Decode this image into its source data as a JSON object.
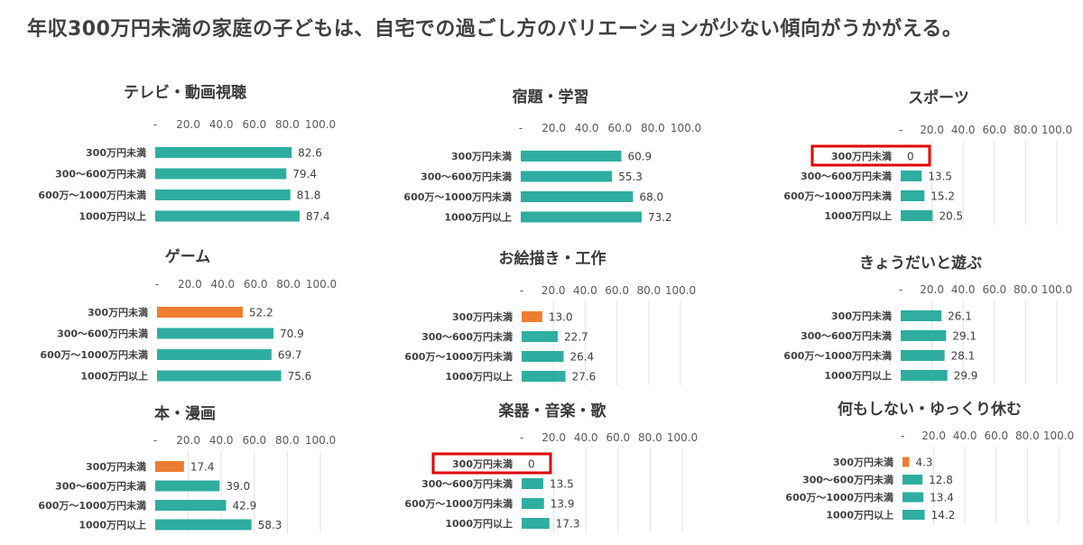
{
  "page": {
    "title": "年収300万円未満の家庭の子どもは、自宅での過ごし方のバリエーションが少ない傾向がうかがえる。"
  },
  "colors": {
    "default_bar": "#2fada0",
    "highlight_bar": "#ed7d31",
    "emphasis_box": "#e00000"
  },
  "chart_data": [
    {
      "type": "bar",
      "orientation": "horizontal",
      "title": "テレビ・動画視聴",
      "categories": [
        "300万円未満",
        "300～600万円未満",
        "600万～1000万円未満",
        "1000万円以上"
      ],
      "values": [
        82.6,
        79.4,
        81.8,
        87.4
      ],
      "value_labels": [
        "82.6",
        "79.4",
        "81.8",
        "87.4"
      ],
      "xlim": [
        0,
        100
      ],
      "ticks": [
        "-",
        "20.0",
        "40.0",
        "60.0",
        "80.0",
        "100.0"
      ],
      "highlight_index": null,
      "boxed_index": null,
      "grid": false
    },
    {
      "type": "bar",
      "orientation": "horizontal",
      "title": "宿題・学習",
      "categories": [
        "300万円未満",
        "300～600万円未満",
        "600万～1000万円未満",
        "1000万円以上"
      ],
      "values": [
        60.9,
        55.3,
        68.0,
        73.2
      ],
      "value_labels": [
        "60.9",
        "55.3",
        "68.0",
        "73.2"
      ],
      "xlim": [
        0,
        100
      ],
      "ticks": [
        "-",
        "20.0",
        "40.0",
        "60.0",
        "80.0",
        "100.0"
      ],
      "highlight_index": null,
      "boxed_index": null,
      "grid": false
    },
    {
      "type": "bar",
      "orientation": "horizontal",
      "title": "スポーツ",
      "categories": [
        "300万円未満",
        "300～600万円未満",
        "600万～1000万円未満",
        "1000万円以上"
      ],
      "values": [
        0,
        13.5,
        15.2,
        20.5
      ],
      "value_labels": [
        "0",
        "13.5",
        "15.2",
        "20.5"
      ],
      "xlim": [
        0,
        100
      ],
      "ticks": [
        "-",
        "20.0",
        "40.0",
        "60.0",
        "80.0",
        "100.0"
      ],
      "highlight_index": null,
      "boxed_index": 0,
      "grid": true
    },
    {
      "type": "bar",
      "orientation": "horizontal",
      "title": "ゲーム",
      "categories": [
        "300万円未満",
        "300～600万円未満",
        "600万～1000万円未満",
        "1000万円以上"
      ],
      "values": [
        52.2,
        70.9,
        69.7,
        75.6
      ],
      "value_labels": [
        "52.2",
        "70.9",
        "69.7",
        "75.6"
      ],
      "xlim": [
        0,
        100
      ],
      "ticks": [
        "-",
        "20.0",
        "40.0",
        "60.0",
        "80.0",
        "100.0"
      ],
      "highlight_index": 0,
      "boxed_index": null,
      "grid": false
    },
    {
      "type": "bar",
      "orientation": "horizontal",
      "title": "お絵描き・工作",
      "categories": [
        "300万円未満",
        "300～600万円未満",
        "600万～1000万円未満",
        "1000万円以上"
      ],
      "values": [
        13.0,
        22.7,
        26.4,
        27.6
      ],
      "value_labels": [
        "13.0",
        "22.7",
        "26.4",
        "27.6"
      ],
      "xlim": [
        0,
        100
      ],
      "ticks": [
        "-",
        "20.0",
        "40.0",
        "60.0",
        "80.0",
        "100.0"
      ],
      "highlight_index": 0,
      "boxed_index": null,
      "grid": true
    },
    {
      "type": "bar",
      "orientation": "horizontal",
      "title": "きょうだいと遊ぶ",
      "categories": [
        "300万円未満",
        "300～600万円未満",
        "600万～1000万円未満",
        "1000万円以上"
      ],
      "values": [
        26.1,
        29.1,
        28.1,
        29.9
      ],
      "value_labels": [
        "26.1",
        "29.1",
        "28.1",
        "29.9"
      ],
      "xlim": [
        0,
        100
      ],
      "ticks": [
        "-",
        "20.0",
        "40.0",
        "60.0",
        "80.0",
        "100.0"
      ],
      "highlight_index": null,
      "boxed_index": null,
      "grid": true
    },
    {
      "type": "bar",
      "orientation": "horizontal",
      "title": "本・漫画",
      "categories": [
        "300万円未満",
        "300～600万円未満",
        "600万～1000万円未満",
        "1000万円以上"
      ],
      "values": [
        17.4,
        39.0,
        42.9,
        58.3
      ],
      "value_labels": [
        "17.4",
        "39.0",
        "42.9",
        "58.3"
      ],
      "xlim": [
        0,
        100
      ],
      "ticks": [
        "-",
        "20.0",
        "40.0",
        "60.0",
        "80.0",
        "100.0"
      ],
      "highlight_index": 0,
      "boxed_index": null,
      "grid": true
    },
    {
      "type": "bar",
      "orientation": "horizontal",
      "title": "楽器・音楽・歌",
      "categories": [
        "300万円未満",
        "300～600万円未満",
        "600万～1000万円未満",
        "1000万円以上"
      ],
      "values": [
        0,
        13.5,
        13.9,
        17.3
      ],
      "value_labels": [
        "0",
        "13.5",
        "13.9",
        "17.3"
      ],
      "xlim": [
        0,
        100
      ],
      "ticks": [
        "-",
        "20.0",
        "40.0",
        "60.0",
        "80.0",
        "100.0"
      ],
      "highlight_index": null,
      "boxed_index": 0,
      "grid": true
    },
    {
      "type": "bar",
      "orientation": "horizontal",
      "title": "何もしない・ゆっくり休む",
      "categories": [
        "300万円未満",
        "300～600万円未満",
        "600万～1000万円未満",
        "1000万円以上"
      ],
      "values": [
        4.3,
        12.8,
        13.4,
        14.2
      ],
      "value_labels": [
        "4.3",
        "12.8",
        "13.4",
        "14.2"
      ],
      "xlim": [
        0,
        100
      ],
      "ticks": [
        "-",
        "20.0",
        "40.0",
        "60.0",
        "80.0",
        "100.0"
      ],
      "highlight_index": 0,
      "boxed_index": null,
      "grid": true
    }
  ]
}
